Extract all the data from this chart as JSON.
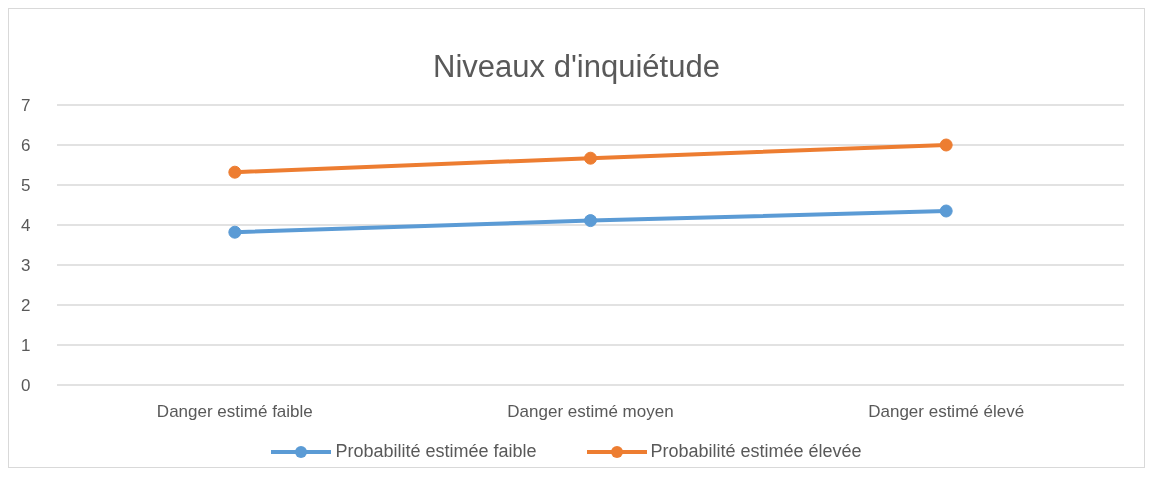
{
  "chart_data": {
    "type": "line",
    "title": "Niveaux d'inquiétude",
    "categories": [
      "Danger estimé faible",
      "Danger estimé moyen",
      "Danger estimé élevé"
    ],
    "series": [
      {
        "name": "Probabilité estimée faible",
        "color": "#5b9bd5",
        "values": [
          3.82,
          4.11,
          4.35
        ]
      },
      {
        "name": "Probabilité estimée élevée",
        "color": "#ed7d31",
        "values": [
          5.32,
          5.67,
          6.0
        ]
      }
    ],
    "ylim": [
      0,
      7
    ],
    "yticks": [
      0,
      1,
      2,
      3,
      4,
      5,
      6,
      7
    ],
    "grid": "y",
    "legend": "bottom",
    "marker": "circle",
    "line_style": "solid"
  }
}
